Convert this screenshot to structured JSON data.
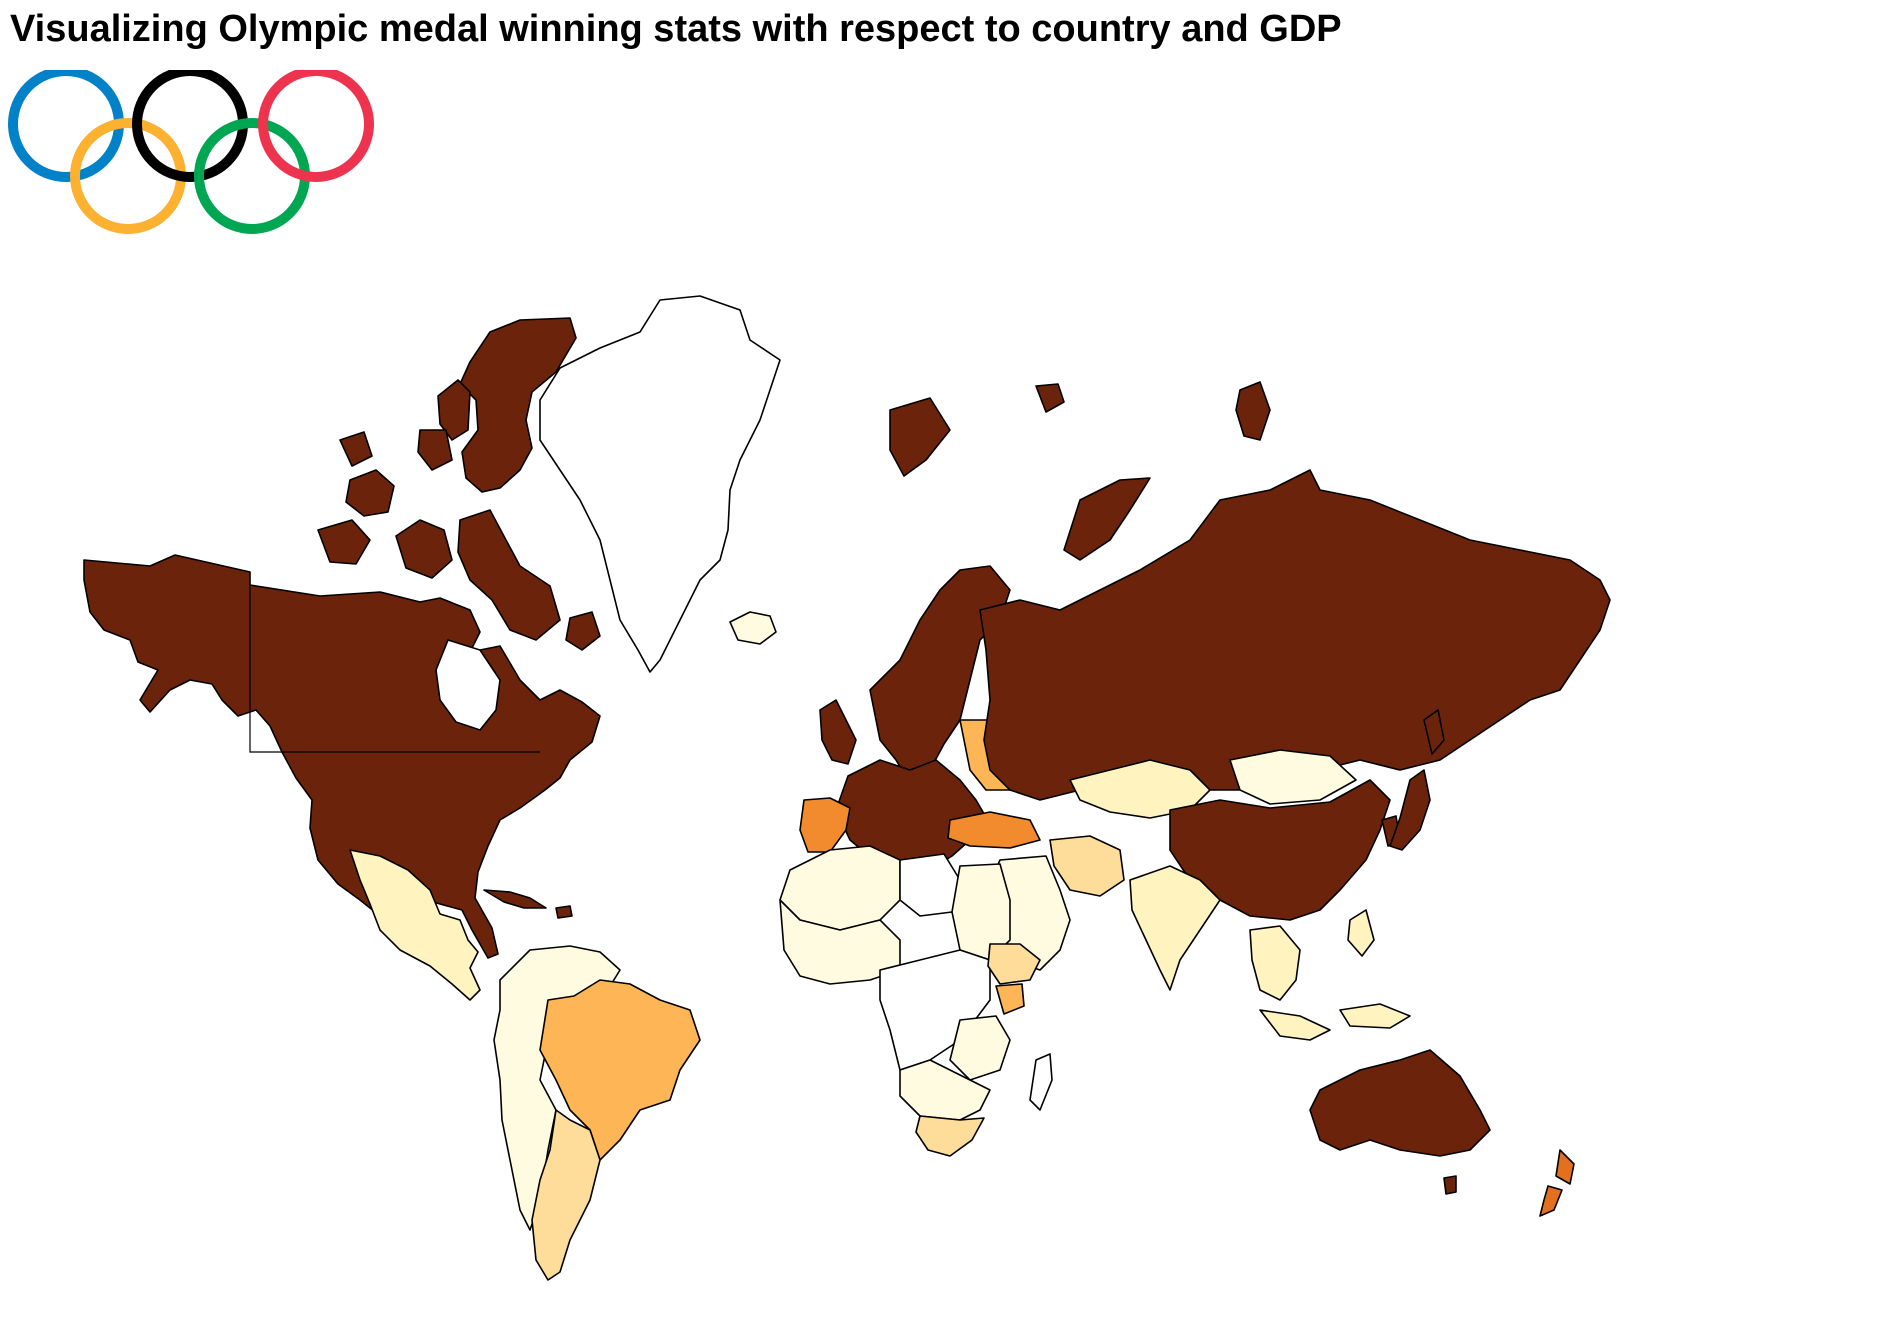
{
  "title": "Visualizing Olympic medal winning stats with respect to country and GDP",
  "olympic_rings": {
    "colors": [
      "#0081C8",
      "#FCB131",
      "#000000",
      "#00A651",
      "#EE334E"
    ]
  },
  "map": {
    "projection": "mercator",
    "color_scale": [
      "#ffffff",
      "#fffbe0",
      "#fff3c0",
      "#fedd9a",
      "#fdb555",
      "#f28a2e",
      "#e2701f",
      "#6b240b"
    ],
    "regions": [
      {
        "id": "north-america",
        "level": 7
      },
      {
        "id": "greenland",
        "level": 0
      },
      {
        "id": "iceland",
        "level": 1
      },
      {
        "id": "mexico",
        "level": 2
      },
      {
        "id": "caribbean",
        "level": 7
      },
      {
        "id": "south-america-north",
        "level": 1
      },
      {
        "id": "brazil",
        "level": 4
      },
      {
        "id": "argentina",
        "level": 3
      },
      {
        "id": "europe",
        "level": 7
      },
      {
        "id": "spain",
        "level": 5
      },
      {
        "id": "eastern-europe",
        "level": 4
      },
      {
        "id": "turkey",
        "level": 5
      },
      {
        "id": "russia",
        "level": 7
      },
      {
        "id": "kazakhstan",
        "level": 2
      },
      {
        "id": "mongolia",
        "level": 1
      },
      {
        "id": "china",
        "level": 7
      },
      {
        "id": "japan",
        "level": 7
      },
      {
        "id": "korea",
        "level": 7
      },
      {
        "id": "iran",
        "level": 3
      },
      {
        "id": "middle-east",
        "level": 1
      },
      {
        "id": "india",
        "level": 2
      },
      {
        "id": "southeast-asia",
        "level": 2
      },
      {
        "id": "north-africa",
        "level": 1
      },
      {
        "id": "libya",
        "level": 0
      },
      {
        "id": "west-africa",
        "level": 1
      },
      {
        "id": "central-africa",
        "level": 0
      },
      {
        "id": "east-africa",
        "level": 1
      },
      {
        "id": "ethiopia",
        "level": 3
      },
      {
        "id": "kenya",
        "level": 4
      },
      {
        "id": "southern-africa",
        "level": 1
      },
      {
        "id": "south-africa",
        "level": 3
      },
      {
        "id": "madagascar",
        "level": 0
      },
      {
        "id": "australia",
        "level": 7
      },
      {
        "id": "new-zealand",
        "level": 6
      }
    ]
  }
}
